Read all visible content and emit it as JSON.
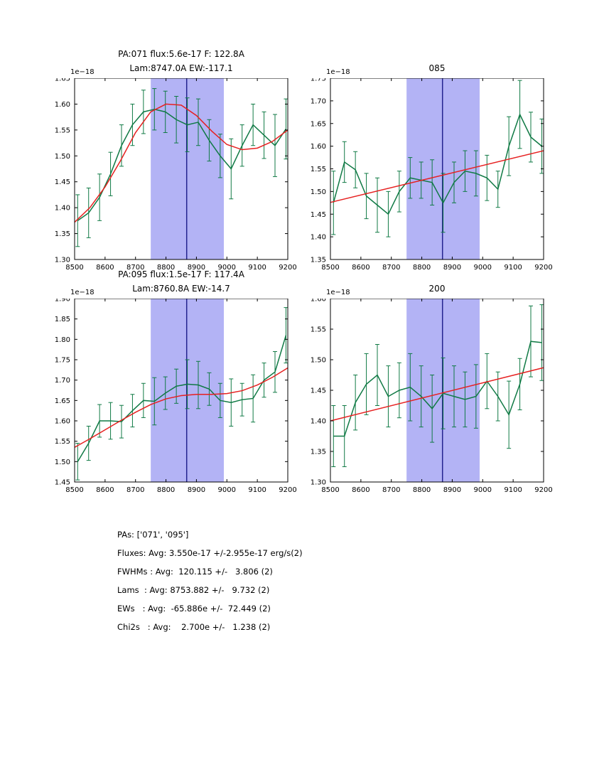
{
  "colors": {
    "data_line": "#107a45",
    "error_bar": "#107a45",
    "fit_line": "#e62020",
    "band_fill": "#b3b3f5",
    "vline": "#24248f",
    "axis": "#000000"
  },
  "chart_data": [
    {
      "type": "line",
      "name": "PA071",
      "title_line1": "PA:071 flux:5.6e-17 F: 122.8A",
      "title_line2": "Lam:8747.0A EW:-117.1",
      "offset_label": "1e−18",
      "xlim": [
        8500,
        9200
      ],
      "ylim": [
        1.3,
        1.65
      ],
      "xticks": [
        8500,
        8600,
        8700,
        8800,
        8900,
        9000,
        9100,
        9200
      ],
      "yticks": [
        1.3,
        1.35,
        1.4,
        1.45,
        1.5,
        1.55,
        1.6,
        1.65
      ],
      "band": [
        8750,
        8990
      ],
      "vline": 8868,
      "series": {
        "x": [
          8510,
          8546,
          8582,
          8618,
          8654,
          8690,
          8726,
          8762,
          8798,
          8834,
          8870,
          8906,
          8942,
          8978,
          9014,
          9050,
          9086,
          9122,
          9158,
          9194
        ],
        "y": [
          1.375,
          1.39,
          1.42,
          1.465,
          1.52,
          1.56,
          1.585,
          1.59,
          1.585,
          1.57,
          1.56,
          1.565,
          1.53,
          1.5,
          1.475,
          1.52,
          1.56,
          1.54,
          1.52,
          1.552
        ],
        "yerr": [
          0.05,
          0.048,
          0.045,
          0.042,
          0.04,
          0.04,
          0.042,
          0.04,
          0.04,
          0.045,
          0.052,
          0.045,
          0.04,
          0.042,
          0.058,
          0.04,
          0.04,
          0.045,
          0.06,
          0.058
        ]
      },
      "fit": {
        "x": [
          8500,
          8550,
          8600,
          8650,
          8700,
          8750,
          8800,
          8850,
          8900,
          8950,
          9000,
          9050,
          9100,
          9150,
          9200
        ],
        "y": [
          1.372,
          1.4,
          1.44,
          1.49,
          1.545,
          1.585,
          1.6,
          1.598,
          1.578,
          1.548,
          1.522,
          1.512,
          1.515,
          1.528,
          1.55
        ]
      }
    },
    {
      "type": "line",
      "name": "085",
      "title_line1": "",
      "title_line2": "085",
      "offset_label": "1e−18",
      "xlim": [
        8500,
        9200
      ],
      "ylim": [
        1.35,
        1.75
      ],
      "xticks": [
        8500,
        8600,
        8700,
        8800,
        8900,
        9000,
        9100,
        9200
      ],
      "yticks": [
        1.35,
        1.4,
        1.45,
        1.5,
        1.55,
        1.6,
        1.65,
        1.7,
        1.75
      ],
      "band": [
        8750,
        8990
      ],
      "vline": 8868,
      "series": {
        "x": [
          8510,
          8546,
          8582,
          8618,
          8654,
          8690,
          8726,
          8762,
          8798,
          8834,
          8870,
          8906,
          8942,
          8978,
          9014,
          9050,
          9086,
          9122,
          9158,
          9194
        ],
        "y": [
          1.475,
          1.565,
          1.548,
          1.49,
          1.47,
          1.45,
          1.5,
          1.53,
          1.525,
          1.52,
          1.475,
          1.52,
          1.545,
          1.54,
          1.53,
          1.505,
          1.6,
          1.67,
          1.62,
          1.6
        ],
        "yerr": [
          0.07,
          0.045,
          0.04,
          0.05,
          0.06,
          0.05,
          0.045,
          0.045,
          0.04,
          0.05,
          0.065,
          0.045,
          0.045,
          0.05,
          0.05,
          0.04,
          0.065,
          0.075,
          0.055,
          0.06
        ]
      },
      "fit": {
        "x": [
          8500,
          9200
        ],
        "y": [
          1.476,
          1.59
        ]
      }
    },
    {
      "type": "line",
      "name": "PA095",
      "title_line1": "PA:095 flux:1.5e-17 F: 117.4A",
      "title_line2": "Lam:8760.8A EW:-14.7",
      "offset_label": "1e−18",
      "xlim": [
        8500,
        9200
      ],
      "ylim": [
        1.45,
        1.9
      ],
      "xticks": [
        8500,
        8600,
        8700,
        8800,
        8900,
        9000,
        9100,
        9200
      ],
      "yticks": [
        1.45,
        1.5,
        1.55,
        1.6,
        1.65,
        1.7,
        1.75,
        1.8,
        1.85,
        1.9
      ],
      "band": [
        8750,
        8990
      ],
      "vline": 8868,
      "series": {
        "x": [
          8510,
          8546,
          8582,
          8618,
          8654,
          8690,
          8726,
          8762,
          8798,
          8834,
          8870,
          8906,
          8942,
          8978,
          9014,
          9050,
          9086,
          9122,
          9158,
          9194
        ],
        "y": [
          1.5,
          1.545,
          1.6,
          1.6,
          1.598,
          1.625,
          1.65,
          1.648,
          1.668,
          1.685,
          1.69,
          1.688,
          1.678,
          1.65,
          1.645,
          1.652,
          1.655,
          1.7,
          1.72,
          1.81
        ],
        "yerr": [
          0.045,
          0.042,
          0.04,
          0.045,
          0.04,
          0.04,
          0.042,
          0.058,
          0.04,
          0.042,
          0.06,
          0.058,
          0.04,
          0.042,
          0.058,
          0.04,
          0.058,
          0.042,
          0.05,
          0.068
        ]
      },
      "fit": {
        "x": [
          8500,
          8550,
          8600,
          8650,
          8700,
          8750,
          8800,
          8850,
          8900,
          8950,
          9000,
          9050,
          9100,
          9150,
          9200
        ],
        "y": [
          1.535,
          1.556,
          1.578,
          1.6,
          1.621,
          1.64,
          1.654,
          1.662,
          1.665,
          1.665,
          1.667,
          1.674,
          1.688,
          1.707,
          1.73
        ]
      }
    },
    {
      "type": "line",
      "name": "200",
      "title_line1": "",
      "title_line2": "200",
      "offset_label": "1e−18",
      "xlim": [
        8500,
        9200
      ],
      "ylim": [
        1.3,
        1.6
      ],
      "xticks": [
        8500,
        8600,
        8700,
        8800,
        8900,
        9000,
        9100,
        9200
      ],
      "yticks": [
        1.3,
        1.35,
        1.4,
        1.45,
        1.5,
        1.55,
        1.6
      ],
      "band": [
        8750,
        8990
      ],
      "vline": 8868,
      "series": {
        "x": [
          8510,
          8546,
          8582,
          8618,
          8654,
          8690,
          8726,
          8762,
          8798,
          8834,
          8870,
          8906,
          8942,
          8978,
          9014,
          9050,
          9086,
          9122,
          9158,
          9194
        ],
        "y": [
          1.375,
          1.375,
          1.43,
          1.46,
          1.475,
          1.44,
          1.45,
          1.455,
          1.44,
          1.42,
          1.445,
          1.44,
          1.435,
          1.44,
          1.465,
          1.44,
          1.41,
          1.46,
          1.53,
          1.528
        ],
        "yerr": [
          0.05,
          0.05,
          0.045,
          0.05,
          0.05,
          0.05,
          0.045,
          0.055,
          0.05,
          0.055,
          0.058,
          0.05,
          0.045,
          0.052,
          0.045,
          0.04,
          0.055,
          0.042,
          0.058,
          0.062
        ]
      },
      "fit": {
        "x": [
          8500,
          9200
        ],
        "y": [
          1.4,
          1.487
        ]
      }
    }
  ],
  "summary": {
    "lines": [
      "PAs: ['071', '095']",
      "Fluxes: Avg: 3.550e-17 +/-2.955e-17 erg/s(2)",
      "FWHMs : Avg:  120.115 +/-   3.806 (2)",
      "Lams  : Avg: 8753.882 +/-   9.732 (2)",
      "EWs   : Avg:  -65.886e +/-  72.449 (2)",
      "Chi2s   : Avg:    2.700e +/-   1.238 (2)"
    ]
  }
}
